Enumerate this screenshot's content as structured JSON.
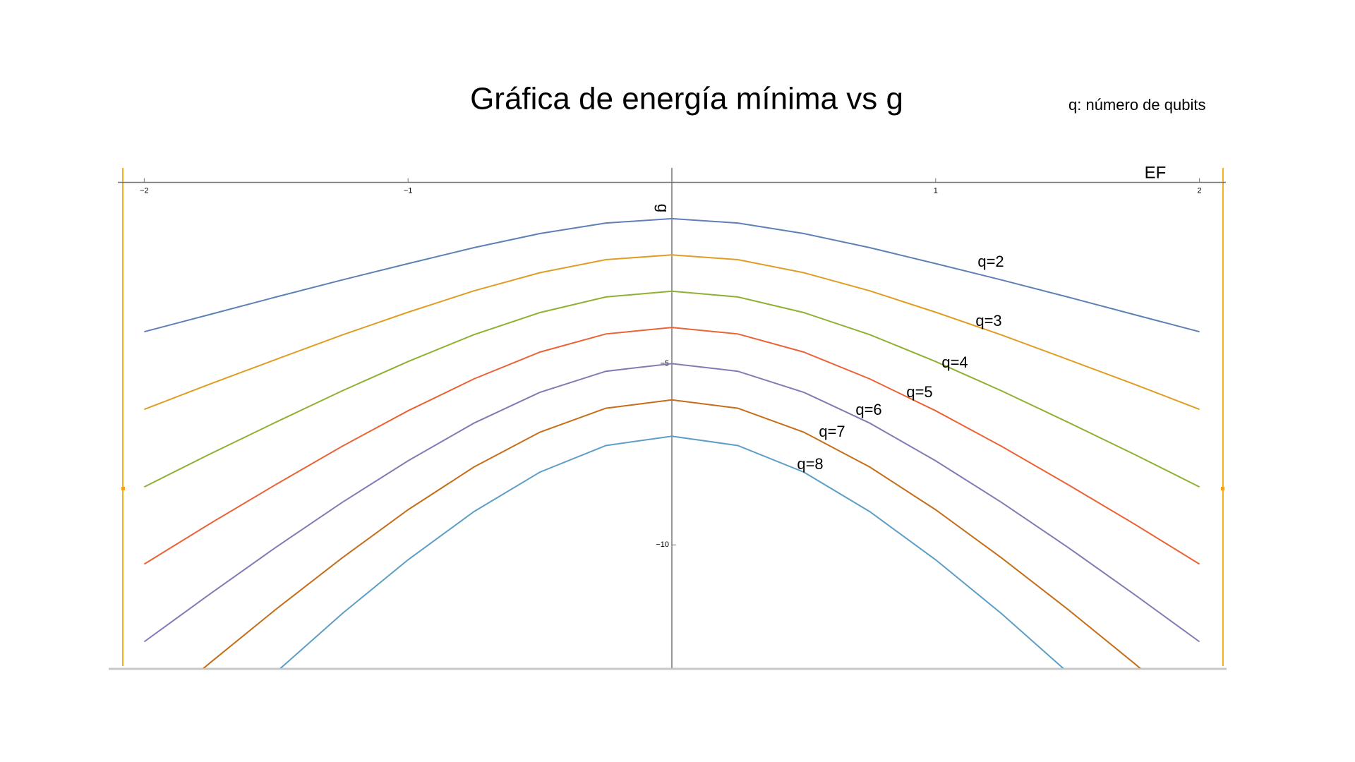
{
  "chart_data": {
    "type": "line",
    "title": "Gráfica de energía mínima vs g",
    "subtitle": "q: número de qubits",
    "x_label": "EF",
    "y_label": "g",
    "x": [
      -2,
      -1.75,
      -1.5,
      -1.25,
      -1,
      -0.75,
      -0.5,
      -0.25,
      0,
      0.25,
      0.5,
      0.75,
      1,
      1.25,
      1.5,
      1.75,
      2
    ],
    "series": [
      {
        "name": "q=2",
        "color": "#5e81b5",
        "values": [
          -4.12,
          -3.64,
          -3.16,
          -2.69,
          -2.24,
          -1.8,
          -1.41,
          -1.12,
          -1,
          -1.12,
          -1.41,
          -1.8,
          -2.24,
          -2.69,
          -3.16,
          -3.64,
          -4.12
        ]
      },
      {
        "name": "q=3",
        "color": "#e19c24",
        "values": [
          -6.26,
          -5.56,
          -4.88,
          -4.21,
          -3.58,
          -2.99,
          -2.49,
          -2.13,
          -2,
          -2.13,
          -2.49,
          -2.99,
          -3.58,
          -4.21,
          -4.88,
          -5.56,
          -6.26
        ]
      },
      {
        "name": "q=4",
        "color": "#8fb032",
        "values": [
          -8.4,
          -7.49,
          -6.61,
          -5.75,
          -4.94,
          -4.2,
          -3.59,
          -3.16,
          -3,
          -3.16,
          -3.59,
          -4.2,
          -4.94,
          -5.75,
          -6.61,
          -7.49,
          -8.4
        ]
      },
      {
        "name": "q=5",
        "color": "#eb6235",
        "values": [
          -10.53,
          -9.41,
          -8.33,
          -7.28,
          -6.3,
          -5.42,
          -4.68,
          -4.18,
          -4,
          -4.18,
          -4.68,
          -5.42,
          -6.3,
          -7.28,
          -8.33,
          -9.41,
          -10.53
        ]
      },
      {
        "name": "q=6",
        "color": "#8778b3",
        "values": [
          -12.67,
          -11.35,
          -10.06,
          -8.83,
          -7.68,
          -6.64,
          -5.79,
          -5.21,
          -5,
          -5.21,
          -5.79,
          -6.64,
          -7.68,
          -8.83,
          -10.06,
          -11.35,
          -12.67
        ]
      },
      {
        "name": "q=7",
        "color": "#c56e1a",
        "values": [
          -14.78,
          -13.25,
          -11.77,
          -10.36,
          -9.03,
          -7.85,
          -6.89,
          -6.23,
          -6,
          -6.23,
          -6.89,
          -7.85,
          -9.03,
          -10.36,
          -11.77,
          -13.25,
          -14.78
        ]
      },
      {
        "name": "q=8",
        "color": "#5d9ec7",
        "values": [
          null,
          null,
          -13.51,
          -11.9,
          -10.41,
          -9.08,
          -7.99,
          -7.26,
          -7,
          -7.26,
          -7.99,
          -9.08,
          -10.41,
          -11.9,
          -13.51,
          null,
          null
        ]
      }
    ],
    "xlim": [
      -2.1,
      2.1
    ],
    "ylim": [
      -13.4,
      0.4
    ],
    "xticks": [
      {
        "value": -2,
        "label": "−2"
      },
      {
        "value": -1,
        "label": "−1"
      },
      1,
      2
    ],
    "yticks": [
      {
        "value": -5,
        "label": "−5"
      },
      {
        "value": -10,
        "label": "−10"
      }
    ]
  }
}
